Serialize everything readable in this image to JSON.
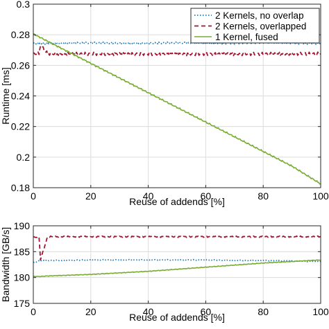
{
  "colors": {
    "no_overlap": "#1f77b4",
    "overlapped": "#a2142f",
    "fused": "#77ac30"
  },
  "chart_data": [
    {
      "type": "line",
      "xlabel": "Reuse of addends [%]",
      "ylabel": "Runtime [ms]",
      "xlim": [
        0,
        100
      ],
      "ylim": [
        0.18,
        0.3
      ],
      "xticks": [
        0,
        20,
        40,
        60,
        80,
        100
      ],
      "yticks": [
        0.18,
        0.2,
        0.22,
        0.24,
        0.26,
        0.28,
        0.3
      ],
      "ytick_labels": [
        "0.18",
        "0.2",
        "0.22",
        "0.24",
        "0.26",
        "0.28",
        "0.3"
      ],
      "grid": true,
      "legend_position": "top-right",
      "x": [
        0,
        2,
        2.5,
        5,
        10,
        20,
        30,
        40,
        50,
        60,
        70,
        80,
        90,
        100
      ],
      "series": [
        {
          "name": "2 Kernels, no overlap",
          "style": "dotted",
          "values": [
            0.2745,
            0.2745,
            0.2745,
            0.2745,
            0.2745,
            0.2745,
            0.2745,
            0.2745,
            0.2745,
            0.2745,
            0.2745,
            0.2745,
            0.2745,
            0.2745
          ]
        },
        {
          "name": "2 Kernels, overlapped",
          "style": "dashed",
          "values": [
            0.2675,
            0.2675,
            0.2735,
            0.2675,
            0.2675,
            0.2675,
            0.2675,
            0.2675,
            0.2675,
            0.2675,
            0.2675,
            0.2675,
            0.2675,
            0.2675
          ]
        },
        {
          "name": "1 Kernel, fused",
          "style": "solid",
          "values": [
            0.2805,
            0.2786,
            0.2782,
            0.2757,
            0.2709,
            0.2613,
            0.2517,
            0.2421,
            0.2325,
            0.2229,
            0.2133,
            0.2037,
            0.1941,
            0.1825
          ]
        }
      ]
    },
    {
      "type": "line",
      "xlabel": "Reuse of addends [%]",
      "ylabel": "Bandwidth [GB/s]",
      "xlim": [
        0,
        100
      ],
      "ylim": [
        175,
        190
      ],
      "xticks": [
        0,
        20,
        40,
        60,
        80,
        100
      ],
      "yticks": [
        175,
        180,
        185,
        190
      ],
      "ytick_labels": [
        "175",
        "180",
        "185",
        "190"
      ],
      "grid": true,
      "x": [
        0,
        2,
        2.5,
        5,
        10,
        20,
        30,
        40,
        50,
        60,
        70,
        80,
        90,
        100
      ],
      "series": [
        {
          "name": "2 Kernels, no overlap",
          "style": "dotted",
          "values": [
            182.9,
            183.2,
            183.3,
            183.3,
            183.3,
            183.4,
            183.4,
            183.4,
            183.4,
            183.4,
            183.3,
            183.3,
            183.2,
            183.1
          ]
        },
        {
          "name": "2 Kernels, overlapped",
          "style": "dashed",
          "values": [
            187.8,
            187.8,
            183.5,
            187.9,
            187.9,
            187.9,
            187.9,
            187.9,
            187.9,
            187.9,
            187.9,
            187.9,
            187.9,
            187.9
          ]
        },
        {
          "name": "1 Kernel, fused",
          "style": "solid",
          "values": [
            180.2,
            180.2,
            180.2,
            180.3,
            180.4,
            180.6,
            180.9,
            181.2,
            181.6,
            182.0,
            182.4,
            182.8,
            183.1,
            183.4
          ]
        }
      ]
    }
  ]
}
